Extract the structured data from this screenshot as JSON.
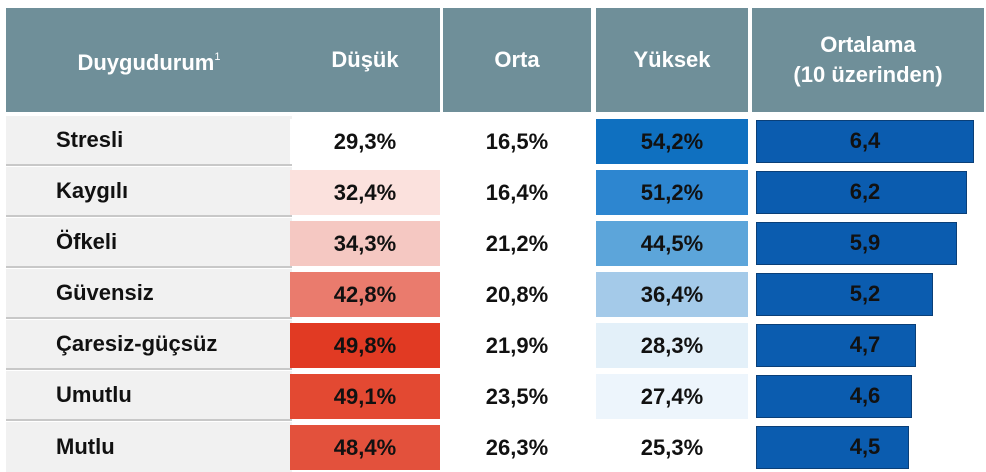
{
  "header": {
    "columns": [
      "Duygudurum",
      "Düşük",
      "Orta",
      "Yüksek",
      [
        "Ortalama",
        "(10 üzerinden)"
      ]
    ],
    "footnote": "1"
  },
  "table": {
    "rows": [
      [
        "Stresli",
        "29,3%",
        "16,5%",
        "54,2%",
        "6,4"
      ],
      [
        "Kaygılı",
        "32,4%",
        "16,4%",
        "51,2%",
        "6,2"
      ],
      [
        "Öfkeli",
        "34,3%",
        "21,2%",
        "44,5%",
        "5,9"
      ],
      [
        "Güvensiz",
        "42,8%",
        "20,8%",
        "36,4%",
        "5,2"
      ],
      [
        "Çaresiz-güçsüz",
        "49,8%",
        "21,9%",
        "28,3%",
        "4,7"
      ],
      [
        "Umutlu",
        "49,1%",
        "23,5%",
        "27,4%",
        "4,6"
      ],
      [
        "Mutlu",
        "48,4%",
        "26,3%",
        "25,3%",
        "4,5"
      ]
    ]
  }
}
